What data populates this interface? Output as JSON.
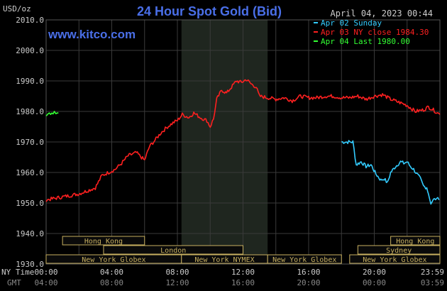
{
  "header": {
    "currency": "USD/oz",
    "title": "24 Hour Spot Gold (Bid)",
    "datetime": "April 04, 2023 00:44",
    "watermark": "www.kitco.com"
  },
  "legend": [
    {
      "text": "Apr 02 Sunday",
      "color": "#33ccff"
    },
    {
      "text": "Apr 03 NY close 1984.30",
      "color": "#ff2020"
    },
    {
      "text": "Apr 04 Last 1980.00",
      "color": "#33ff33"
    }
  ],
  "time_axis": {
    "ny_label": "NY Time",
    "gmt_label": "GMT",
    "ny_ticks": [
      "00:00",
      "04:00",
      "08:00",
      "12:00",
      "16:00",
      "20:00",
      "23:59"
    ],
    "gmt_ticks": [
      "04:00",
      "08:00",
      "12:00",
      "16:00",
      "20:00",
      "00:00",
      "03:59"
    ]
  },
  "markets": [
    {
      "label": "Hong Kong",
      "start": 1.0,
      "end": 6.0,
      "row": 0
    },
    {
      "label": "Hong Kong",
      "start": 21.0,
      "end": 24.0,
      "row": 0
    },
    {
      "label": "London",
      "start": 3.5,
      "end": 12.0,
      "row": 1
    },
    {
      "label": "Sydney",
      "start": 19.0,
      "end": 24.0,
      "row": 1
    },
    {
      "label": "New York Globex",
      "start": 0.0,
      "end": 8.25,
      "row": 2
    },
    {
      "label": "New York NYMEX",
      "start": 8.25,
      "end": 13.5,
      "row": 2
    },
    {
      "label": "New York Globex",
      "start": 13.5,
      "end": 18.0,
      "row": 2
    },
    {
      "label": "New York Globex",
      "start": 18.5,
      "end": 24.0,
      "row": 2
    }
  ],
  "colors": {
    "grid": "#3a3a3a",
    "shade": "#1f261f",
    "axis_text": "#cccccc",
    "title": "#4a6fe8",
    "watermark": "#4a6fe8",
    "market_box": "#c8b060",
    "market_text": "#000000",
    "market_bg": "#0a0a0a"
  },
  "chart_data": {
    "type": "line",
    "title": "24 Hour Spot Gold (Bid)",
    "ylabel": "USD/oz",
    "xlabel": "NY Time",
    "x_units": "hours",
    "ylim": [
      1930,
      2010
    ],
    "yticks": [
      1930.0,
      1940.0,
      1950.0,
      1960.0,
      1970.0,
      1980.0,
      1990.0,
      2000.0,
      2010.0
    ],
    "ytick_labels": [
      "1930.0",
      "1940.0",
      "1950.0",
      "1960.0",
      "1970.0",
      "1980.0",
      "1990.0",
      "2000.0",
      "2010.0"
    ],
    "xlim": [
      0,
      24
    ],
    "xticks": [
      0,
      4,
      8,
      12,
      16,
      20,
      24
    ],
    "shaded_hours": [
      8.25,
      13.5
    ],
    "grid": true,
    "series": [
      {
        "name": "Apr 02 Sunday",
        "color": "#33ccff",
        "points": [
          [
            18.0,
            1970.0
          ],
          [
            18.7,
            1970.0
          ],
          [
            18.9,
            1962.5
          ],
          [
            19.2,
            1963.5
          ],
          [
            19.5,
            1962.0
          ],
          [
            19.8,
            1962.5
          ],
          [
            20.1,
            1959.5
          ],
          [
            20.4,
            1957.5
          ],
          [
            20.6,
            1958.0
          ],
          [
            20.8,
            1956.5
          ],
          [
            21.0,
            1960.0
          ],
          [
            21.3,
            1962.0
          ],
          [
            21.6,
            1963.5
          ],
          [
            21.8,
            1963.0
          ],
          [
            22.0,
            1963.5
          ],
          [
            22.2,
            1962.0
          ],
          [
            22.4,
            1961.0
          ],
          [
            22.6,
            1959.5
          ],
          [
            22.8,
            1958.0
          ],
          [
            23.0,
            1955.5
          ],
          [
            23.2,
            1955.0
          ],
          [
            23.3,
            1953.0
          ],
          [
            23.45,
            1950.0
          ],
          [
            23.6,
            1951.0
          ],
          [
            23.8,
            1951.5
          ],
          [
            23.95,
            1951.0
          ]
        ]
      },
      {
        "name": "Apr 03 NY close 1984.30",
        "color": "#ff2020",
        "points": [
          [
            0.0,
            1951.0
          ],
          [
            0.5,
            1951.5
          ],
          [
            1.0,
            1952.0
          ],
          [
            1.5,
            1952.5
          ],
          [
            2.0,
            1953.0
          ],
          [
            2.5,
            1954.0
          ],
          [
            3.0,
            1955.0
          ],
          [
            3.4,
            1959.0
          ],
          [
            3.8,
            1960.0
          ],
          [
            4.2,
            1961.0
          ],
          [
            4.6,
            1963.0
          ],
          [
            5.0,
            1965.5
          ],
          [
            5.5,
            1966.5
          ],
          [
            6.0,
            1964.0
          ],
          [
            6.3,
            1968.5
          ],
          [
            6.7,
            1971.0
          ],
          [
            7.0,
            1973.0
          ],
          [
            7.4,
            1975.0
          ],
          [
            7.8,
            1976.5
          ],
          [
            8.0,
            1977.0
          ],
          [
            8.3,
            1979.0
          ],
          [
            8.7,
            1978.0
          ],
          [
            9.0,
            1979.5
          ],
          [
            9.4,
            1978.0
          ],
          [
            9.8,
            1977.0
          ],
          [
            10.0,
            1975.0
          ],
          [
            10.2,
            1977.5
          ],
          [
            10.4,
            1984.0
          ],
          [
            10.7,
            1987.0
          ],
          [
            11.0,
            1986.0
          ],
          [
            11.3,
            1988.0
          ],
          [
            11.6,
            1990.0
          ],
          [
            11.9,
            1989.5
          ],
          [
            12.2,
            1990.5
          ],
          [
            12.5,
            1989.0
          ],
          [
            12.8,
            1988.0
          ],
          [
            13.0,
            1985.0
          ],
          [
            13.5,
            1984.5
          ],
          [
            14.0,
            1984.0
          ],
          [
            14.5,
            1984.5
          ],
          [
            15.0,
            1983.5
          ],
          [
            15.5,
            1985.0
          ],
          [
            16.0,
            1984.5
          ],
          [
            16.5,
            1984.5
          ],
          [
            17.0,
            1985.0
          ],
          [
            17.5,
            1985.0
          ],
          [
            18.0,
            1984.5
          ],
          [
            18.5,
            1984.5
          ],
          [
            19.0,
            1985.0
          ],
          [
            19.5,
            1984.0
          ],
          [
            20.0,
            1985.0
          ],
          [
            20.5,
            1985.5
          ],
          [
            21.0,
            1984.0
          ],
          [
            21.5,
            1983.0
          ],
          [
            22.0,
            1982.0
          ],
          [
            22.5,
            1980.0
          ],
          [
            23.0,
            1980.5
          ],
          [
            23.3,
            1981.5
          ],
          [
            23.6,
            1980.5
          ],
          [
            24.0,
            1979.0
          ]
        ]
      },
      {
        "name": "Apr 04 Last 1980.00",
        "color": "#33ff33",
        "points": [
          [
            0.0,
            1979.0
          ],
          [
            0.2,
            1979.5
          ],
          [
            0.35,
            1979.5
          ],
          [
            0.5,
            1980.0
          ],
          [
            0.6,
            1979.0
          ],
          [
            0.75,
            1979.5
          ]
        ]
      }
    ]
  }
}
